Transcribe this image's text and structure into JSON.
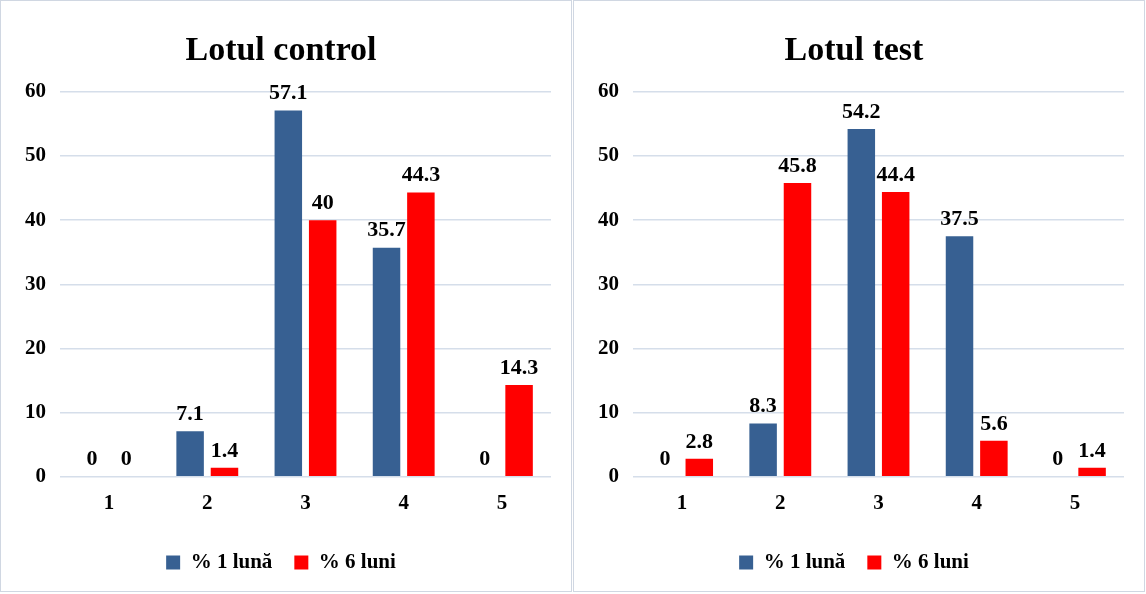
{
  "chart_data": [
    {
      "type": "bar",
      "title": "Lotul control",
      "categories": [
        "1",
        "2",
        "3",
        "4",
        "5"
      ],
      "series": [
        {
          "name": "% 1 lună",
          "color": "#376092",
          "values": [
            0,
            7.1,
            57.1,
            35.7,
            0
          ]
        },
        {
          "name": "% 6 luni",
          "color": "#ff0000",
          "values": [
            0,
            1.4,
            40,
            44.3,
            14.3
          ]
        }
      ],
      "ylim": [
        0,
        60
      ],
      "yticks": [
        0,
        10,
        20,
        30,
        40,
        50,
        60
      ],
      "grid": "y",
      "legend": "bottom",
      "data_labels": true
    },
    {
      "type": "bar",
      "title": "Lotul test",
      "categories": [
        "1",
        "2",
        "3",
        "4",
        "5"
      ],
      "series": [
        {
          "name": "% 1 lună",
          "color": "#376092",
          "values": [
            0,
            8.3,
            54.2,
            37.5,
            0
          ]
        },
        {
          "name": "% 6 luni",
          "color": "#ff0000",
          "values": [
            2.8,
            45.8,
            44.4,
            5.6,
            1.4
          ]
        }
      ],
      "ylim": [
        0,
        60
      ],
      "yticks": [
        0,
        10,
        20,
        30,
        40,
        50,
        60
      ],
      "grid": "y",
      "legend": "bottom",
      "data_labels": true
    }
  ]
}
